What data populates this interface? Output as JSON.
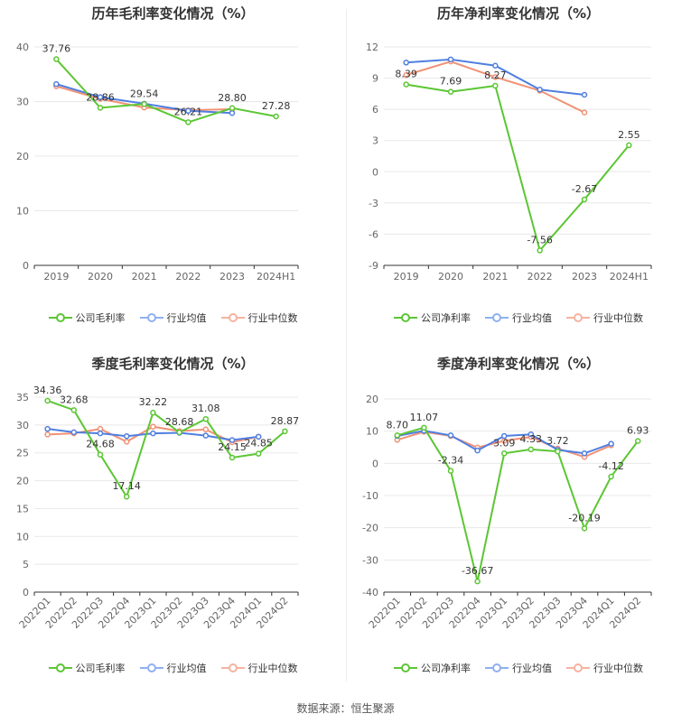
{
  "colors": {
    "company": "#5cc634",
    "avg": "#4f7fe0",
    "median": "#f19175"
  },
  "source": "数据来源：恒生聚源",
  "chart_data": [
    {
      "type": "line",
      "title": "历年毛利率变化情况（%）",
      "categories": [
        "2019",
        "2020",
        "2021",
        "2022",
        "2023",
        "2024H1"
      ],
      "ylim": [
        0,
        40
      ],
      "yticks": [
        0,
        10,
        20,
        30,
        40
      ],
      "legend": [
        "公司毛利率",
        "行业均值",
        "行业中位数"
      ],
      "series": [
        {
          "name": "公司毛利率",
          "key": "company",
          "values": [
            37.76,
            28.86,
            29.54,
            26.21,
            28.8,
            27.28
          ],
          "labels": [
            "37.76",
            "28.86",
            "29.54",
            "26.21",
            "28.80",
            "27.28"
          ]
        },
        {
          "name": "行业均值",
          "key": "avg",
          "values": [
            33.2,
            30.8,
            29.6,
            28.3,
            27.9,
            null
          ]
        },
        {
          "name": "行业中位数",
          "key": "median",
          "values": [
            32.8,
            30.5,
            28.9,
            28.4,
            28.6,
            null
          ]
        }
      ]
    },
    {
      "type": "line",
      "title": "历年净利率变化情况（%）",
      "categories": [
        "2019",
        "2020",
        "2021",
        "2022",
        "2023",
        "2024H1"
      ],
      "ylim": [
        -9,
        12
      ],
      "yticks": [
        -9,
        -6,
        -3,
        0,
        3,
        6,
        9,
        12
      ],
      "legend": [
        "公司净利率",
        "行业均值",
        "行业中位数"
      ],
      "series": [
        {
          "name": "公司净利率",
          "key": "company",
          "values": [
            8.39,
            7.69,
            8.27,
            -7.56,
            -2.67,
            2.55
          ],
          "labels": [
            "8.39",
            "7.69",
            "8.27",
            "-7.56",
            "-2.67",
            "2.55"
          ]
        },
        {
          "name": "行业均值",
          "key": "avg",
          "values": [
            10.5,
            10.8,
            10.2,
            7.9,
            7.4,
            null
          ]
        },
        {
          "name": "行业中位数",
          "key": "median",
          "values": [
            9.3,
            10.6,
            9.1,
            7.8,
            5.7,
            null
          ]
        }
      ]
    },
    {
      "type": "line",
      "title": "季度毛利率变化情况（%）",
      "categories": [
        "2022Q1",
        "2022Q2",
        "2022Q3",
        "2022Q4",
        "2023Q1",
        "2023Q2",
        "2023Q3",
        "2023Q4",
        "2024Q1",
        "2024Q2"
      ],
      "ylim": [
        0,
        35
      ],
      "yticks": [
        0,
        5,
        10,
        15,
        20,
        25,
        30,
        35
      ],
      "legend": [
        "公司毛利率",
        "行业均值",
        "行业中位数"
      ],
      "series": [
        {
          "name": "公司毛利率",
          "key": "company",
          "values": [
            34.36,
            32.68,
            24.68,
            17.14,
            32.22,
            28.68,
            31.08,
            24.15,
            24.85,
            28.87
          ],
          "labels": [
            "34.36",
            "32.68",
            "24.68",
            "17.14",
            "32.22",
            "28.68",
            "31.08",
            "24.15",
            "24.85",
            "28.87"
          ]
        },
        {
          "name": "行业均值",
          "key": "avg",
          "values": [
            29.3,
            28.7,
            28.5,
            28.0,
            28.5,
            28.6,
            28.1,
            27.3,
            27.9,
            null
          ]
        },
        {
          "name": "行业中位数",
          "key": "median",
          "values": [
            28.3,
            28.5,
            29.3,
            27.0,
            29.7,
            28.9,
            29.2,
            26.9,
            27.9,
            null
          ]
        }
      ]
    },
    {
      "type": "line",
      "title": "季度净利率变化情况（%）",
      "categories": [
        "2022Q1",
        "2022Q2",
        "2022Q3",
        "2022Q4",
        "2023Q1",
        "2023Q2",
        "2023Q3",
        "2023Q4",
        "2024Q1",
        "2024Q2"
      ],
      "ylim": [
        -40,
        20
      ],
      "yticks": [
        -40,
        -30,
        -20,
        -10,
        0,
        10,
        20
      ],
      "legend": [
        "公司净利率",
        "行业均值",
        "行业中位数"
      ],
      "series": [
        {
          "name": "公司净利率",
          "key": "company",
          "values": [
            8.7,
            11.07,
            -2.34,
            -36.67,
            3.09,
            4.33,
            3.72,
            -20.19,
            -4.12,
            6.93
          ],
          "labels": [
            "8.70",
            "11.07",
            "-2.34",
            "-36.67",
            "3.09",
            "4.33",
            "3.72",
            "-20.19",
            "-4.12",
            "6.93"
          ]
        },
        {
          "name": "行业均值",
          "key": "avg",
          "values": [
            8.5,
            10.1,
            8.7,
            4.0,
            8.5,
            9.0,
            4.2,
            3.1,
            6.1,
            null
          ]
        },
        {
          "name": "行业中位数",
          "key": "median",
          "values": [
            7.3,
            9.8,
            8.5,
            4.9,
            7.0,
            8.2,
            4.6,
            2.0,
            5.6,
            null
          ]
        }
      ]
    }
  ]
}
